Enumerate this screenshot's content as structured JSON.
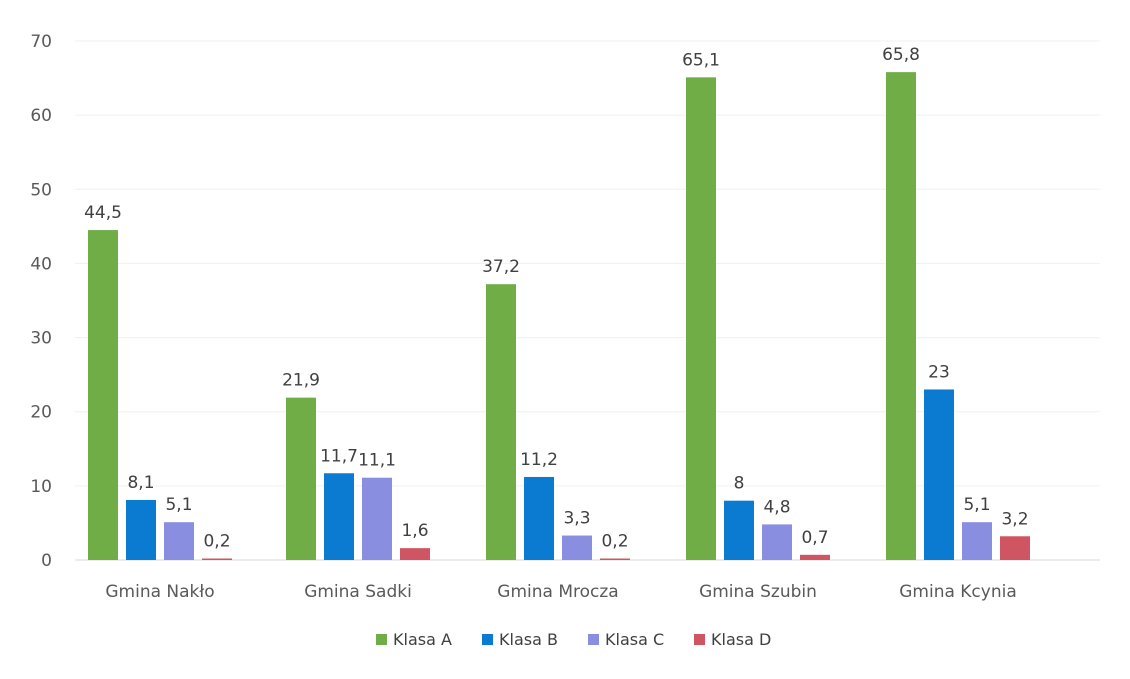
{
  "chart_data": {
    "type": "bar",
    "title": "",
    "xlabel": "",
    "ylabel": "",
    "ylim": [
      0,
      70
    ],
    "yticks": [
      0,
      10,
      20,
      30,
      40,
      50,
      60,
      70
    ],
    "grid": true,
    "legend_position": "bottom",
    "categories": [
      "Gmina Nakło",
      "Gmina Sadki",
      "Gmina Mrocza",
      "Gmina Szubin",
      "Gmina Kcynia"
    ],
    "series": [
      {
        "name": "Klasa A",
        "color": "#70ad47",
        "values": [
          44.5,
          21.9,
          37.2,
          65.1,
          65.8
        ],
        "labels": [
          "44,5",
          "21,9",
          "37,2",
          "65,1",
          "65,8"
        ]
      },
      {
        "name": "Klasa B",
        "color": "#0b7ad1",
        "values": [
          8.1,
          11.7,
          11.2,
          8,
          23
        ],
        "labels": [
          "8,1",
          "11,7",
          "11,2",
          "8",
          "23"
        ]
      },
      {
        "name": "Klasa C",
        "color": "#8a8ee0",
        "values": [
          5.1,
          11.1,
          3.3,
          4.8,
          5.1
        ],
        "labels": [
          "5,1",
          "11,1",
          "3,3",
          "4,8",
          "5,1"
        ]
      },
      {
        "name": "Klasa D",
        "color": "#cf5562",
        "values": [
          0.2,
          1.6,
          0.2,
          0.7,
          3.2
        ],
        "labels": [
          "0,2",
          "1,6",
          "0,2",
          "0,7",
          "3,2"
        ]
      }
    ]
  }
}
